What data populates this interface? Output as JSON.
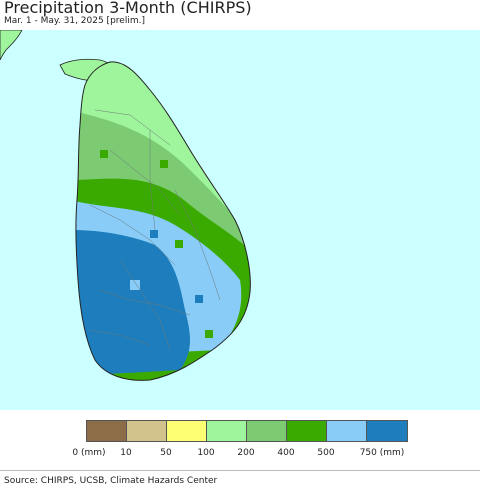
{
  "header": {
    "title": "Precipitation 3-Month (CHIRPS)",
    "subtitle": "Mar. 1 - May. 31, 2025 [prelim.]"
  },
  "legend": {
    "colors": [
      "#8c6d48",
      "#d2c28c",
      "#ffff73",
      "#9ef59b",
      "#7ccb73",
      "#3aaa00",
      "#88ccf7",
      "#1d7dbd"
    ],
    "tick_labels": [
      "0 (mm)",
      "10",
      "50",
      "100",
      "200",
      "400",
      "500",
      "750 (mm)"
    ]
  },
  "map": {
    "ocean_color": "#ccffff",
    "region": "Sri Lanka"
  },
  "footer": {
    "source": "Source: CHIRPS, UCSB, Climate Hazards Center"
  }
}
